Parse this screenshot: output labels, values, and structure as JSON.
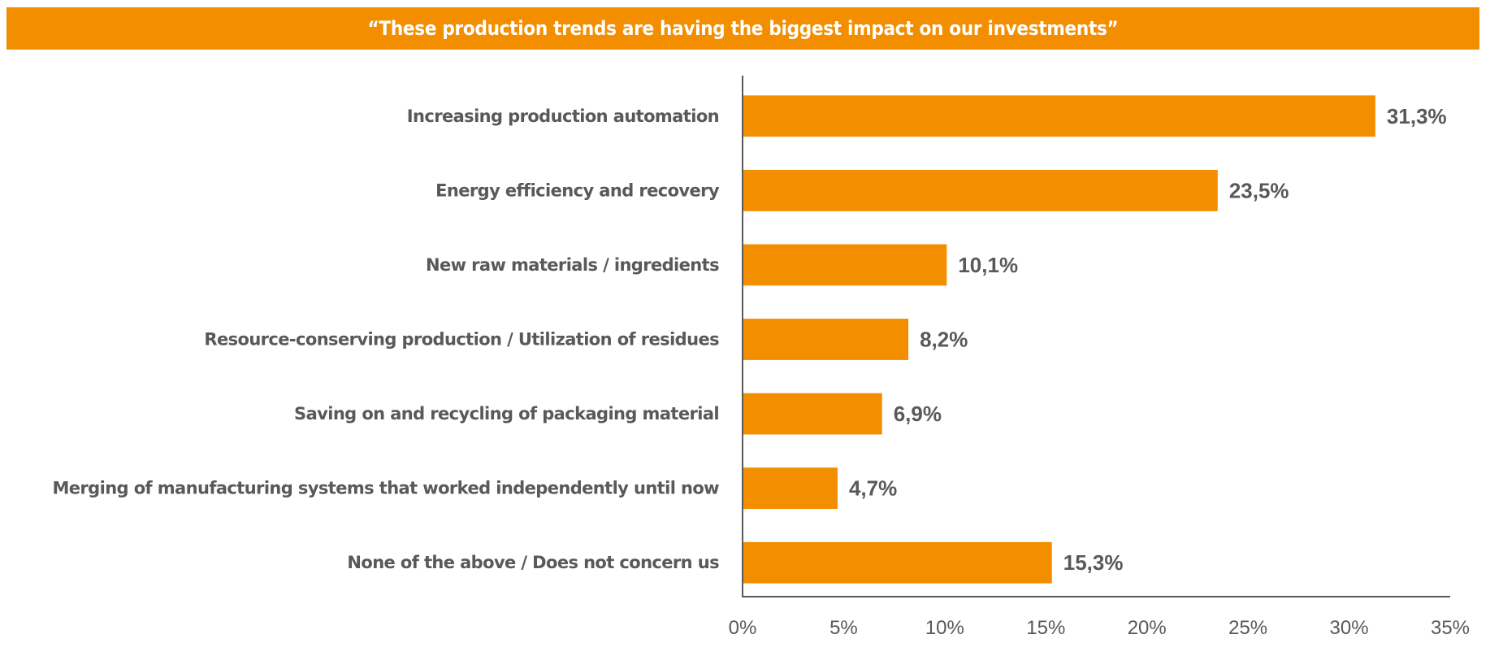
{
  "header": {
    "title": "“These production trends are having the biggest impact on our investments”"
  },
  "colors": {
    "bar": "#F28E00",
    "banner": "#F28E00",
    "text": "#595959",
    "axis": "#595959"
  },
  "chart_data": {
    "type": "bar",
    "orientation": "horizontal",
    "title": "“These production trends are having the biggest impact on our investments”",
    "xlabel": "",
    "ylabel": "",
    "categories": [
      "Increasing production automation",
      "Energy efficiency and recovery",
      "New raw materials / ingredients",
      "Resource-conserving production / Utilization of residues",
      "Saving on and recycling of packaging material",
      "Merging of manufacturing systems that worked independently until now",
      "None of the above / Does not concern us"
    ],
    "values": [
      31.3,
      23.5,
      10.1,
      8.2,
      6.9,
      4.7,
      15.3
    ],
    "value_labels": [
      "31,3%",
      "23,5%",
      "10,1%",
      "8,2%",
      "6,9%",
      "4,7%",
      "15,3%"
    ],
    "xlim": [
      0,
      35
    ],
    "xticks": [
      0,
      5,
      10,
      15,
      20,
      25,
      30,
      35
    ],
    "xtick_labels": [
      "0%",
      "5%",
      "10%",
      "15%",
      "20%",
      "25%",
      "30%",
      "35%"
    ],
    "grid": false,
    "legend": "none"
  }
}
